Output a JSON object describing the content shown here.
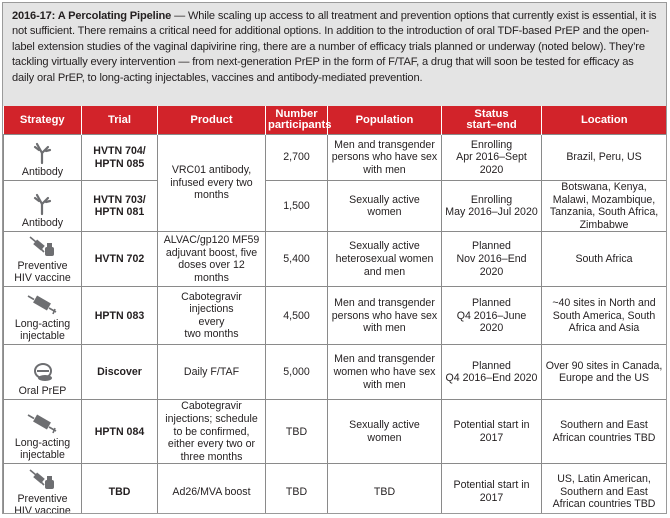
{
  "intro": {
    "heading": "2016-17: A Percolating Pipeline",
    "body": " — While scaling up access to all treatment and prevention options that currently exist is essential, it is not sufficient. There remains a critical need for additional options. In addition to the introduction of oral TDF-based PrEP and the open-label extension studies of the vaginal dapivirine ring, there are a number of efficacy trials planned or underway (noted below). They’re tackling virtually every intervention — from next-generation PrEP in the form of F/TAF, a drug that will soon be tested for efficacy as daily oral PrEP, to long-acting injectables, vaccines and antibody-mediated prevention."
  },
  "colors": {
    "header_red": "#d2232a",
    "intro_bg": "#e4e4e4"
  },
  "headers": {
    "strategy": "Strategy",
    "trial": "Trial",
    "product": "Product",
    "participants_1": "Number",
    "participants_2": "participants",
    "population": "Population",
    "status_1": "Status",
    "status_2": "start–end",
    "location": "Location"
  },
  "rows": [
    {
      "icon": "antibody-icon",
      "strategy": "Antibody",
      "trial_1": "HVTN 704/",
      "trial_2": "HPTN 085",
      "product": "VRC01 antibody, infused every two months",
      "participants": "2,700",
      "population": "Men and transgender persons who have sex with men",
      "status_1": "Enrolling",
      "status_2": "Apr 2016–Sept 2020",
      "location": "Brazil, Peru, US"
    },
    {
      "icon": "antibody-icon",
      "strategy": "Antibody",
      "trial_1": "HVTN 703/",
      "trial_2": "HPTN 081",
      "participants": "1,500",
      "population": "Sexually active women",
      "status_1": "Enrolling",
      "status_2": "May 2016–Jul 2020",
      "location": "Botswana, Kenya, Malawi, Mozambique, Tanzania, South Africa, Zimbabwe"
    },
    {
      "icon": "vaccine-syringe-icon",
      "strategy_1": "Preventive",
      "strategy_2": "HIV vaccine",
      "trial": "HVTN 702",
      "product": "ALVAC/gp120 MF59 adjuvant boost, five doses over 12 months",
      "participants": "5,400",
      "population": "Sexually active heterosexual women and men",
      "status_1": "Planned",
      "status_2": "Nov 2016–End 2020",
      "location": "South Africa"
    },
    {
      "icon": "injectable-syringe-icon",
      "strategy_1": "Long-acting",
      "strategy_2": "injectable",
      "trial": "HPTN 083",
      "product_1": "Cabotegravir injections",
      "product_2": "every",
      "product_3": "two months",
      "participants": "4,500",
      "population": "Men and transgender persons who have sex with men",
      "status_1": "Planned",
      "status_2": "Q4 2016–June 2020",
      "location": "~40 sites in North and South America, South Africa and Asia"
    },
    {
      "icon": "pill-icon",
      "strategy": "Oral PrEP",
      "trial": "Discover",
      "product": "Daily F/TAF",
      "participants": "5,000",
      "population": "Men and transgender women who have sex with men",
      "status_1": "Planned",
      "status_2": "Q4 2016–End 2020",
      "location": "Over 90 sites in Canada, Europe and the US"
    },
    {
      "icon": "injectable-syringe-icon",
      "strategy_1": "Long-acting",
      "strategy_2": "injectable",
      "trial": "HPTN 084",
      "product": "Cabotegravir injections; schedule to be confirmed, either every two or three months",
      "participants": "TBD",
      "population": "Sexually active women",
      "status": "Potential start in 2017",
      "location": "Southern and East African countries TBD"
    },
    {
      "icon": "vaccine-syringe-icon",
      "strategy_1": "Preventive",
      "strategy_2": "HIV vaccine",
      "trial": "TBD",
      "product": "Ad26/MVA boost",
      "participants": "TBD",
      "population": "TBD",
      "status": "Potential start in 2017",
      "location": "US, Latin American, Southern and East African countries TBD"
    }
  ]
}
